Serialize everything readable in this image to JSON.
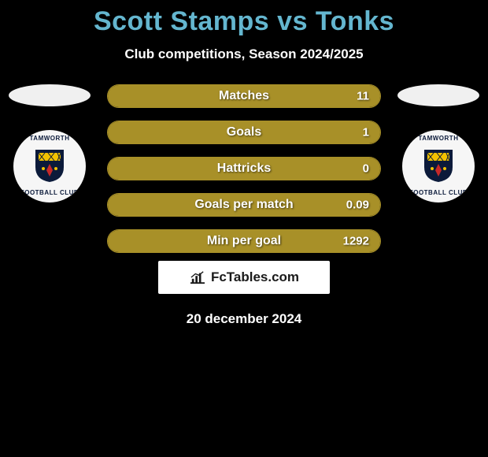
{
  "header": {
    "title": "Scott Stamps vs Tonks",
    "subtitle": "Club competitions, Season 2024/2025",
    "title_color": "#64b6cf"
  },
  "players": {
    "left": {
      "club_top": "TAMWORTH",
      "club_bottom": "FOOTBALL CLUB"
    },
    "right": {
      "club_top": "TAMWORTH",
      "club_bottom": "FOOTBALL CLUB"
    }
  },
  "stats": {
    "bar_color": "#a89028",
    "rows": [
      {
        "label": "Matches",
        "value": "11",
        "fill_pct": 100
      },
      {
        "label": "Goals",
        "value": "1",
        "fill_pct": 100
      },
      {
        "label": "Hattricks",
        "value": "0",
        "fill_pct": 100
      },
      {
        "label": "Goals per match",
        "value": "0.09",
        "fill_pct": 100
      },
      {
        "label": "Min per goal",
        "value": "1292",
        "fill_pct": 100
      }
    ]
  },
  "brand": {
    "text": "FcTables.com"
  },
  "date": "20 december 2024",
  "colors": {
    "bg": "#000000",
    "text": "#ffffff",
    "ellipse": "#f0f0f0",
    "badge_bg": "#f6f6f6",
    "crest_blue": "#0b1a3a",
    "crest_red": "#c62828",
    "crest_yellow": "#f2c200"
  }
}
